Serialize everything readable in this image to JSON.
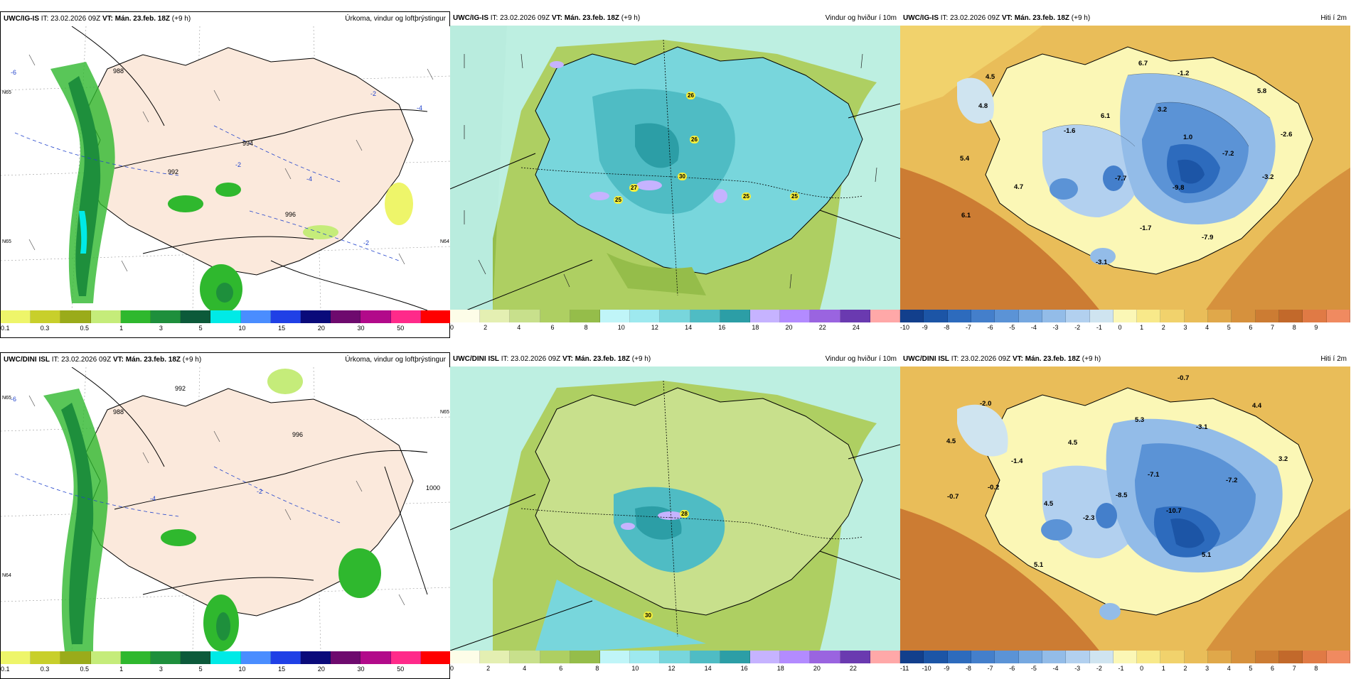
{
  "rows": [
    {
      "model": "UWC/IG-IS",
      "it_label": "IT:",
      "it": "23.02.2026 09Z",
      "vt_label": "VT:",
      "vt": "Mán. 23.feb. 18Z",
      "lead": "(+9 h)",
      "precip_title": "Úrkoma, vindur og loftþrýstingur",
      "wind_title": "Vindur og hviður í 10m",
      "temp_title": "Hiti í 2m",
      "pressure_labels": [
        "988",
        "992",
        "994",
        "996"
      ],
      "temp_labels": [
        "-6",
        "-2",
        "-4",
        "-2",
        "-4",
        "-2"
      ],
      "lat_labels": [
        "N65",
        "N65",
        "N64"
      ],
      "gust_labels": [
        "26",
        "26",
        "30",
        "27",
        "25",
        "25",
        "25"
      ],
      "temp_values": [
        "6.7",
        "-1.2",
        "4.5",
        "4.8",
        "3.2",
        "5.8",
        "6.1",
        "-1.6",
        "1.0",
        "-2.6",
        "5.4",
        "-7.2",
        "4.7",
        "-7.7",
        "-3.2",
        "-9.8",
        "6.1",
        "-1.7",
        "-7.9",
        "-3.1"
      ]
    },
    {
      "model": "UWC/DINI ISL",
      "it_label": "IT:",
      "it": "23.02.2026 09Z",
      "vt_label": "VT:",
      "vt": "Mán. 23.feb. 18Z",
      "lead": "(+9 h)",
      "precip_title": "Úrkoma, vindur og loftþrýstingur",
      "wind_title": "Vindur og hviður í 10m",
      "temp_title": "Hiti í 2m",
      "pressure_labels": [
        "988",
        "992",
        "996",
        "1000"
      ],
      "temp_labels": [
        "-6",
        "-4",
        "-2"
      ],
      "lat_labels": [
        "N65",
        "N65",
        "N64"
      ],
      "gust_labels": [
        "28",
        "30"
      ],
      "temp_values": [
        "-0.7",
        "-2.0",
        "4.4",
        "5.3",
        "4.5",
        "4.5",
        "-3.1",
        "-1.4",
        "3.2",
        "-0.2",
        "-7.1",
        "-7.2",
        "-0.7",
        "4.5",
        "-8.5",
        "-10.7",
        "-2.3",
        "5.1",
        "5.1"
      ]
    }
  ],
  "colorbars": {
    "precip": {
      "colors": [
        "#eef56a",
        "#c8cf2b",
        "#9aab1a",
        "#c5ec7a",
        "#2fb82e",
        "#1e8f3c",
        "#0c5a3a",
        "#00eae6",
        "#4a8dff",
        "#2040e6",
        "#0a0a7a",
        "#6e0a6e",
        "#b20a8a",
        "#ff2a8a",
        "#ff0000"
      ],
      "ticks_row1": [
        "0.1",
        "0.3",
        "0.5",
        "1",
        "3",
        "5",
        "10",
        "15",
        "20",
        "30",
        "50"
      ],
      "ticks_row2": [
        "0.1",
        "0.3",
        "0.5",
        "1",
        "3",
        "5",
        "10",
        "15",
        "20",
        "30",
        "50"
      ]
    },
    "wind": {
      "colors": [
        "#fdfde8",
        "#e4efb2",
        "#c8e08c",
        "#aecf62",
        "#95bd4a",
        "#c0f5f8",
        "#9ee9ef",
        "#78d6dc",
        "#4fbcc4",
        "#2c9ea6",
        "#c6b3ff",
        "#b38bff",
        "#9a64e0",
        "#6a3ab0",
        "#ffa8a8"
      ],
      "ticks_row1": [
        "0",
        "2",
        "4",
        "6",
        "8",
        "10",
        "12",
        "14",
        "16",
        "18",
        "20",
        "22",
        "24"
      ],
      "ticks_row2": [
        "0",
        "2",
        "4",
        "6",
        "8",
        "10",
        "12",
        "14",
        "16",
        "18",
        "20",
        "22"
      ]
    },
    "temp": {
      "colors": [
        "#123f8c",
        "#1c55a6",
        "#2d6bbd",
        "#447fcb",
        "#5b93d6",
        "#76a8e0",
        "#93bce8",
        "#b2d0ef",
        "#cfe4f0",
        "#fbf7b6",
        "#f8e98a",
        "#f1d26c",
        "#e9bd59",
        "#e0a84a",
        "#d6913d",
        "#cc7c33",
        "#c2692b",
        "#e07a45",
        "#f08a60"
      ],
      "ticks_row1": [
        "-10",
        "-9",
        "-8",
        "-7",
        "-6",
        "-5",
        "-4",
        "-3",
        "-2",
        "-1",
        "0",
        "1",
        "2",
        "3",
        "4",
        "5",
        "6",
        "7",
        "8",
        "9"
      ],
      "ticks_row2": [
        "-11",
        "-10",
        "-9",
        "-8",
        "-7",
        "-6",
        "-5",
        "-4",
        "-3",
        "-2",
        "-1",
        "0",
        "1",
        "2",
        "3",
        "4",
        "5",
        "6",
        "7",
        "8"
      ]
    }
  }
}
